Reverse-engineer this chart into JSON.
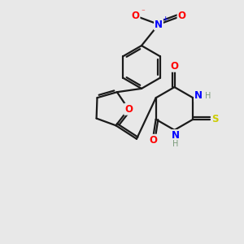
{
  "background_color": "#e8e8e8",
  "bond_color": "#1a1a1a",
  "atom_colors": {
    "O": "#ff0000",
    "N": "#0000ff",
    "S": "#cccc00",
    "H": "#7a9a7a",
    "C": "#1a1a1a"
  },
  "figsize": [
    3.0,
    3.0
  ],
  "dpi": 100,
  "lw": 1.6,
  "fs": 8.5,
  "fs_small": 7.0
}
